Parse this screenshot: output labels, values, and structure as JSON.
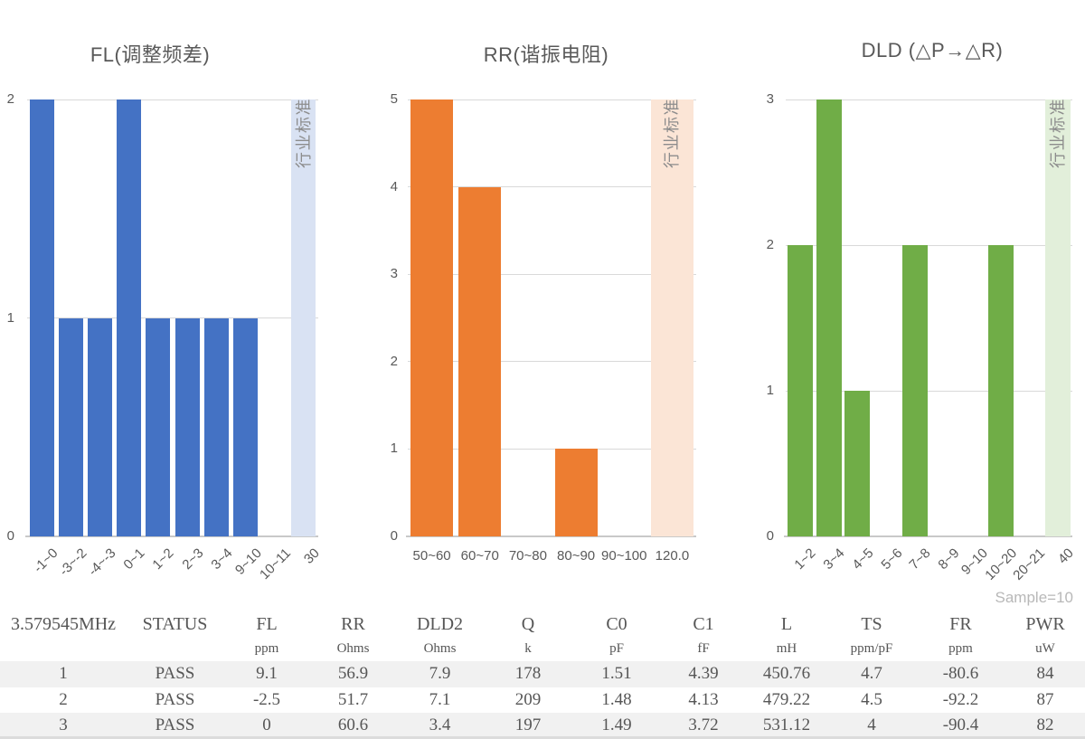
{
  "sample_note": "Sample=10",
  "colors": {
    "grid": "#d9d9d9",
    "axis_line": "#c9c9c9",
    "tick_text": "#595959",
    "title_text": "#595959",
    "band_text": "#8c8c8c",
    "table_text": "#565656",
    "row_stripe": "#f1f1f1",
    "sample_note_text": "#b8b8b8"
  },
  "chart_data": [
    {
      "type": "bar",
      "title": "FL(调整频差)",
      "categories": [
        "-1~0",
        "-3~-2",
        "-4~-3",
        "0~1",
        "1~2",
        "2~3",
        "3~4",
        "9~10",
        "10~11",
        "30"
      ],
      "values": [
        2,
        1,
        1,
        2,
        1,
        1,
        1,
        1,
        0,
        null
      ],
      "band_index": 9,
      "band_label": "行业标准",
      "bar_color": "#4472c4",
      "band_color": "#d9e2f3",
      "ymax": 2,
      "yticks": [
        0,
        1,
        2
      ],
      "grid": true,
      "rotated_labels": true
    },
    {
      "type": "bar",
      "title": "RR(谐振电阻)",
      "categories": [
        "50~60",
        "60~70",
        "70~80",
        "80~90",
        "90~100",
        "120.0"
      ],
      "values": [
        5,
        4,
        0,
        1,
        0,
        null
      ],
      "band_index": 5,
      "band_label": "行业标准",
      "bar_color": "#ed7d31",
      "band_color": "#fbe5d6",
      "ymax": 5,
      "yticks": [
        0,
        1,
        2,
        3,
        4,
        5
      ],
      "grid": true,
      "rotated_labels": false
    },
    {
      "type": "bar",
      "title": "DLD (△P→△R)",
      "categories": [
        "1~2",
        "3~4",
        "4~5",
        "5~6",
        "7~8",
        "8~9",
        "9~10",
        "10~20",
        "20~21",
        "40"
      ],
      "values": [
        2,
        3,
        1,
        0,
        2,
        0,
        0,
        2,
        0,
        null
      ],
      "band_index": 9,
      "band_label": "行业标准",
      "bar_color": "#70ad47",
      "band_color": "#e2efda",
      "ymax": 3,
      "yticks": [
        0,
        1,
        2,
        3
      ],
      "grid": true,
      "rotated_labels": true
    }
  ],
  "table": {
    "columns": [
      {
        "name": "3.579545MHz",
        "unit": ""
      },
      {
        "name": "STATUS",
        "unit": ""
      },
      {
        "name": "FL",
        "unit": "ppm"
      },
      {
        "name": "RR",
        "unit": "Ohms"
      },
      {
        "name": "DLD2",
        "unit": "Ohms"
      },
      {
        "name": "Q",
        "unit": "k"
      },
      {
        "name": "C0",
        "unit": "pF"
      },
      {
        "name": "C1",
        "unit": "fF"
      },
      {
        "name": "L",
        "unit": "mH"
      },
      {
        "name": "TS",
        "unit": "ppm/pF"
      },
      {
        "name": "FR",
        "unit": "ppm"
      },
      {
        "name": "PWR",
        "unit": "uW"
      }
    ],
    "rows": [
      [
        "1",
        "PASS",
        "9.1",
        "56.9",
        "7.9",
        "178",
        "1.51",
        "4.39",
        "450.76",
        "4.7",
        "-80.6",
        "84"
      ],
      [
        "2",
        "PASS",
        "-2.5",
        "51.7",
        "7.1",
        "209",
        "1.48",
        "4.13",
        "479.22",
        "4.5",
        "-92.2",
        "87"
      ],
      [
        "3",
        "PASS",
        "0",
        "60.6",
        "3.4",
        "197",
        "1.49",
        "3.72",
        "531.12",
        "4",
        "-90.4",
        "82"
      ]
    ]
  }
}
